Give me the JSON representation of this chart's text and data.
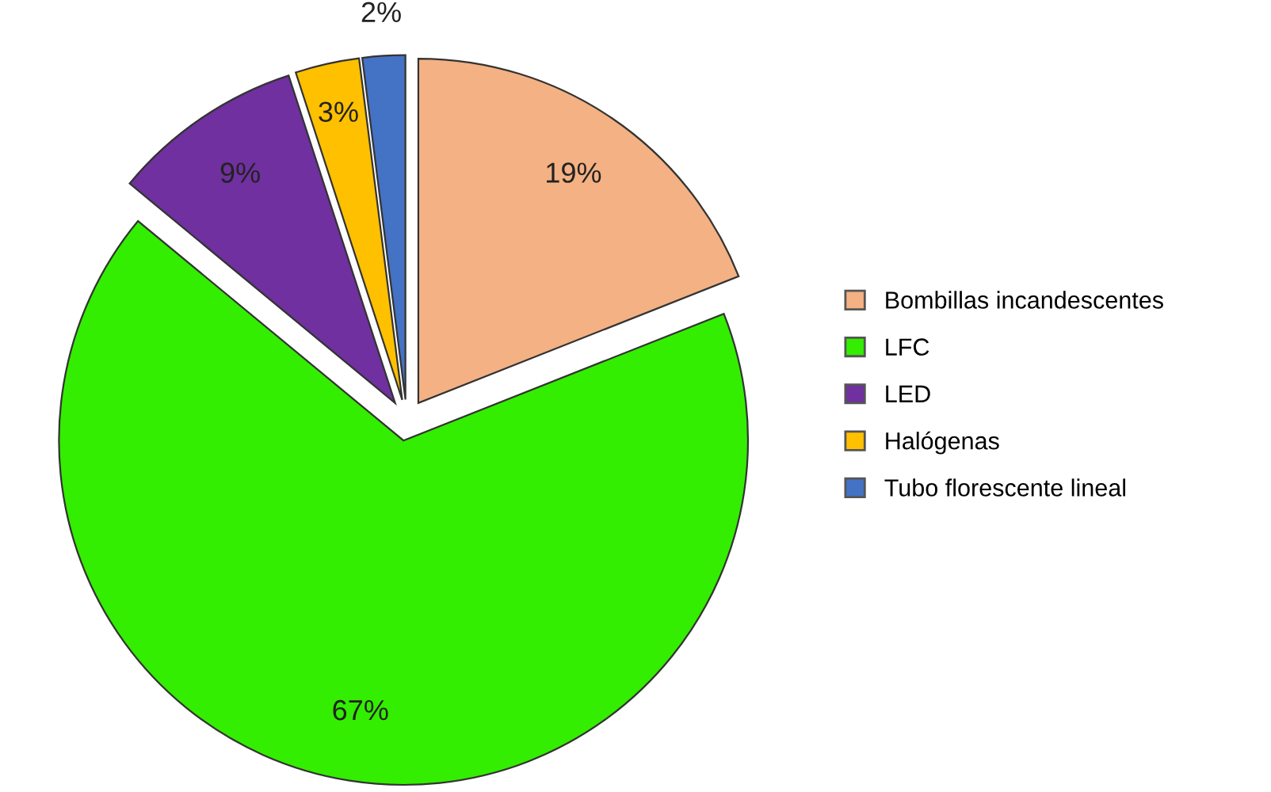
{
  "chart_data": {
    "type": "pie",
    "categories": [
      "Bombillas incandescentes",
      "LFC",
      "LED",
      "Halógenas",
      "Tubo florescente lineal"
    ],
    "values": [
      19,
      67,
      9,
      3,
      2
    ],
    "colors": [
      "#f4b183",
      "#33ee00",
      "#7030a0",
      "#ffc000",
      "#4472c4"
    ],
    "value_labels": [
      "19%",
      "67%",
      "9%",
      "3%",
      "2%"
    ],
    "legend": "right"
  }
}
